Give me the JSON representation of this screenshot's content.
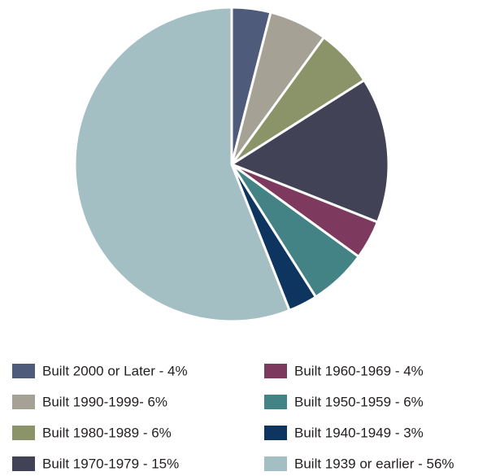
{
  "chart_data": {
    "type": "pie",
    "categories": [
      "Built 2000 or Later - 4%",
      "Built 1990-1999- 6%",
      "Built 1980-1989 - 6%",
      "Built 1970-1979 - 15%",
      "Built 1960-1969 - 4%",
      "Built 1950-1959 - 6%",
      "Built 1940-1949 - 3%",
      "Built 1939 or earlier - 56%"
    ],
    "values": [
      4,
      6,
      6,
      15,
      4,
      6,
      3,
      56
    ],
    "colors": [
      "#4f5b7a",
      "#a5a195",
      "#8a9468",
      "#424257",
      "#7e3a5e",
      "#438285",
      "#0e3560",
      "#a3bfc3"
    ]
  }
}
